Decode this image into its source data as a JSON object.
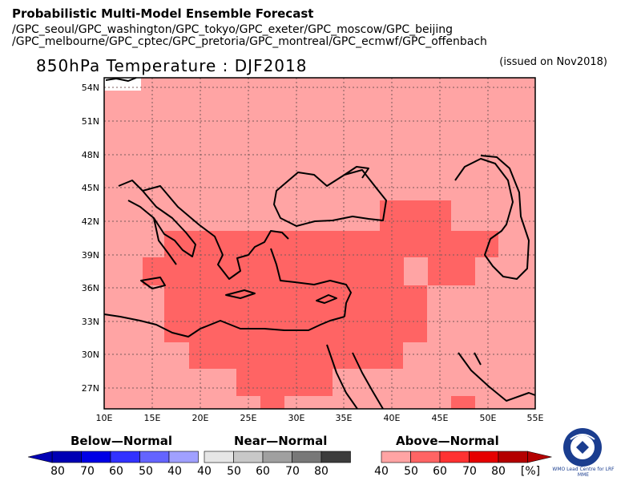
{
  "header": {
    "title": "Probabilistic Multi-Model Ensemble Forecast",
    "centers_line1": "/GPC_seoul/GPC_washington/GPC_tokyo/GPC_exeter/GPC_moscow/GPC_beijing",
    "centers_line2": "/GPC_melbourne/GPC_cptec/GPC_pretoria/GPC_montreal/GPC_ecmwf/GPC_offenbach"
  },
  "map": {
    "title": "850hPa Temperature : DJF2018",
    "issued": "(issued on Nov2018)",
    "lon_labels": [
      "10E",
      "15E",
      "20E",
      "25E",
      "30E",
      "35E",
      "40E",
      "45E",
      "50E",
      "55E"
    ],
    "lat_labels": [
      "54N",
      "51N",
      "48N",
      "45N",
      "42N",
      "39N",
      "36N",
      "33N",
      "30N",
      "27N"
    ],
    "colors": {
      "above_40_50": "#ffa4a4",
      "above_50_60": "#ff6464",
      "coast": "#000000"
    }
  },
  "legend": {
    "below_title": "Below—Normal",
    "near_title": "Near—Normal",
    "above_title": "Above—Normal",
    "below_labels": [
      "80",
      "70",
      "60",
      "50",
      "40"
    ],
    "near_labels": [
      "40",
      "50",
      "60",
      "70",
      "80"
    ],
    "above_labels": [
      "40",
      "50",
      "60",
      "70",
      "80"
    ],
    "unit": "[%]",
    "below_colors": [
      "#0000b4",
      "#0000e6",
      "#3232ff",
      "#6464ff",
      "#a0a0ff"
    ],
    "near_colors": [
      "#e6e6e6",
      "#c8c8c8",
      "#a0a0a0",
      "#787878",
      "#3c3c3c"
    ],
    "above_colors": [
      "#ffa4a4",
      "#ff6464",
      "#ff3232",
      "#e60000",
      "#b40000"
    ]
  },
  "logo": {
    "text": "WMO Lead Centre for LRF MME"
  }
}
